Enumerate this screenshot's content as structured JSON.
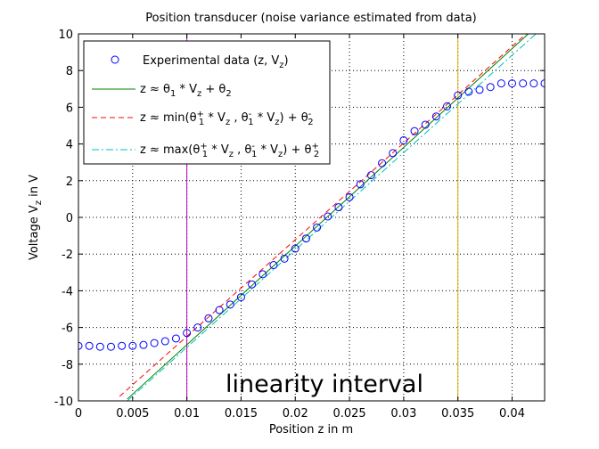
{
  "chart_data": {
    "type": "scatter",
    "title": "Position transducer (noise variance estimated from data)",
    "xlabel": "Position z in m",
    "ylabel": "Voltage V_z in V",
    "xlim": [
      0,
      0.043
    ],
    "ylim": [
      -10,
      10
    ],
    "xticks": [
      "0",
      "0.005",
      "0.01",
      "0.015",
      "0.02",
      "0.025",
      "0.03",
      "0.035",
      "0.04"
    ],
    "yticks": [
      "-10",
      "-8",
      "-6",
      "-4",
      "-2",
      "0",
      "2",
      "4",
      "6",
      "8",
      "10"
    ],
    "grid": true,
    "legend_position": "top-left",
    "annotation": "linearity interval",
    "vertical_lines": [
      {
        "x": 0.01,
        "color": "#bf00bf"
      },
      {
        "x": 0.035,
        "color": "#e0b000"
      }
    ],
    "series": [
      {
        "name": "Experimental data (z, V_z)",
        "type": "scatter",
        "color": "#0000ff",
        "x": [
          0.0,
          0.001,
          0.002,
          0.003,
          0.004,
          0.005,
          0.006,
          0.007,
          0.008,
          0.009,
          0.01,
          0.011,
          0.012,
          0.013,
          0.014,
          0.015,
          0.016,
          0.017,
          0.018,
          0.019,
          0.02,
          0.021,
          0.022,
          0.023,
          0.024,
          0.025,
          0.026,
          0.027,
          0.028,
          0.029,
          0.03,
          0.031,
          0.032,
          0.033,
          0.034,
          0.035,
          0.036,
          0.037,
          0.038,
          0.039,
          0.04,
          0.041,
          0.042,
          0.043
        ],
        "y": [
          -7.0,
          -7.0,
          -7.05,
          -7.05,
          -7.0,
          -7.0,
          -6.95,
          -6.85,
          -6.75,
          -6.6,
          -6.3,
          -6.0,
          -5.5,
          -5.05,
          -4.75,
          -4.35,
          -3.65,
          -3.1,
          -2.6,
          -2.25,
          -1.7,
          -1.15,
          -0.55,
          0.05,
          0.55,
          1.1,
          1.8,
          2.3,
          2.95,
          3.5,
          4.2,
          4.7,
          5.05,
          5.5,
          6.05,
          6.65,
          6.85,
          6.95,
          7.1,
          7.3,
          7.3,
          7.3,
          7.3,
          7.3
        ]
      },
      {
        "name": "z ≈ θ1 * Vz + θ2",
        "type": "line",
        "style": "solid",
        "color": "#008000",
        "x": [
          0.0045,
          0.0415
        ],
        "y": [
          -9.9,
          10.0
        ]
      },
      {
        "name": "z ≈ min(θ1+ * Vz , θ1- * Vz) + θ2-",
        "type": "line",
        "style": "dashed",
        "color": "#ff0000",
        "x": [
          0.0038,
          0.0413
        ],
        "y": [
          -9.75,
          10.0
        ]
      },
      {
        "name": "z ≈ max(θ1+ * Vz , θ1- * Vz) + θ2+",
        "type": "line",
        "style": "dashdot",
        "color": "#00bfbf",
        "x": [
          0.0045,
          0.0422
        ],
        "y": [
          -10.0,
          10.0
        ]
      }
    ]
  }
}
